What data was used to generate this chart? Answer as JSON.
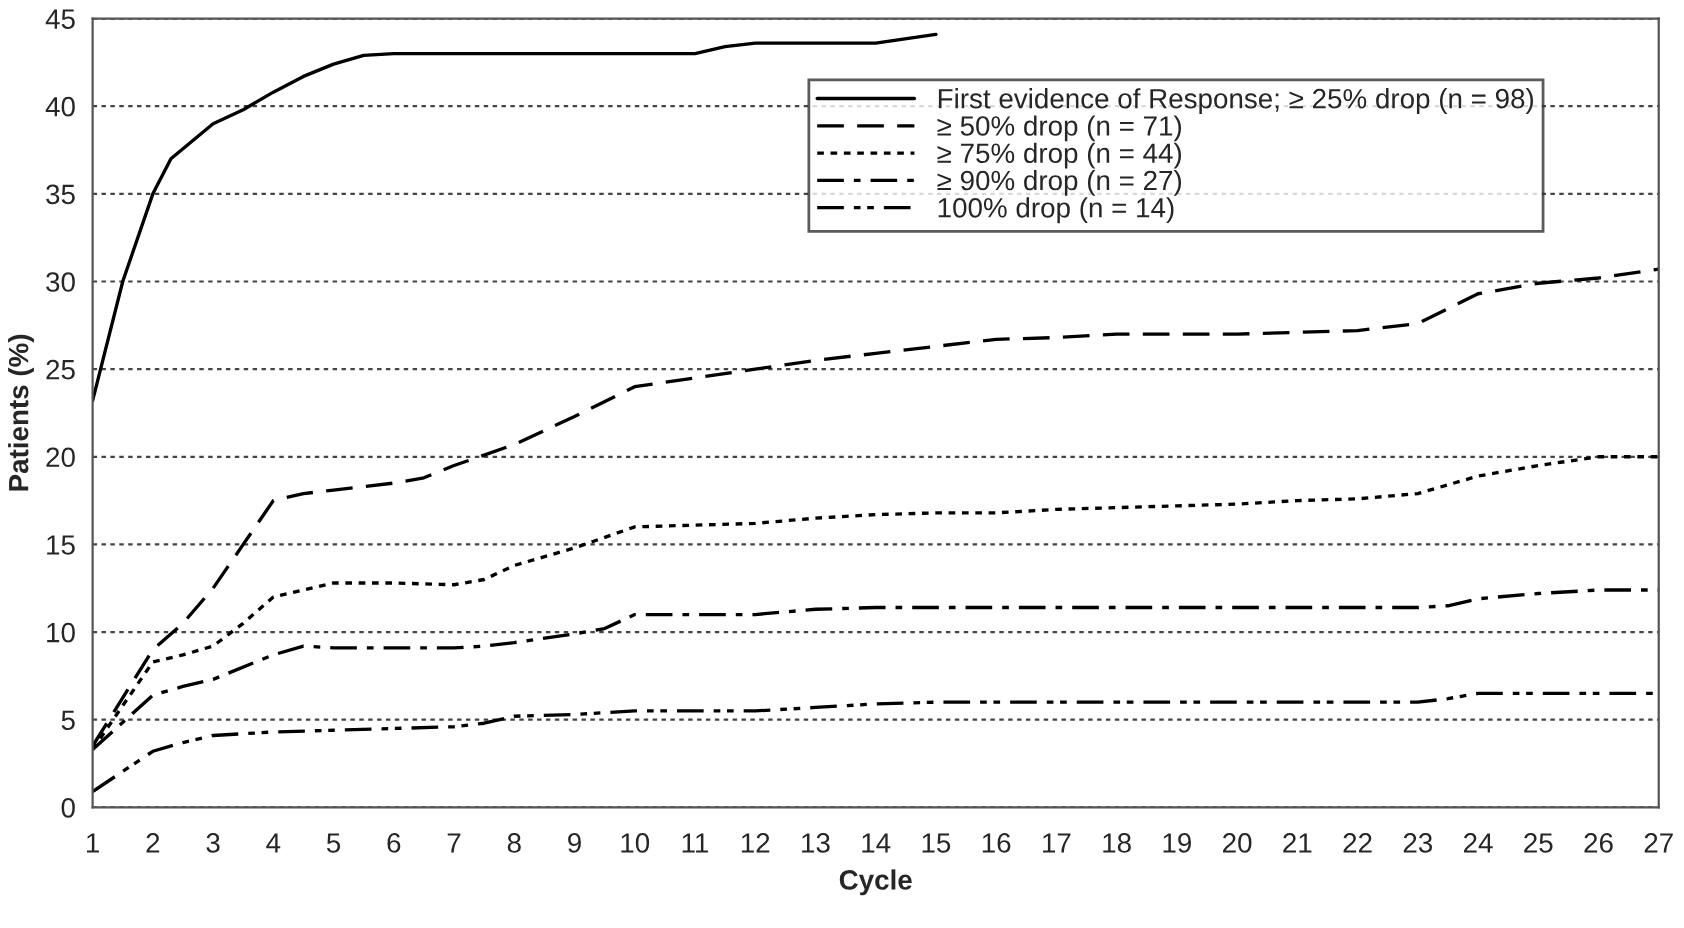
{
  "chart_data": {
    "type": "line",
    "xlabel": "Cycle",
    "ylabel": "Patients (%)",
    "xlim": [
      1,
      27
    ],
    "xticks": [
      1,
      2,
      3,
      4,
      5,
      6,
      7,
      8,
      9,
      10,
      11,
      12,
      13,
      14,
      15,
      16,
      17,
      18,
      19,
      20,
      21,
      22,
      23,
      24,
      25,
      26,
      27
    ],
    "ylim": [
      0,
      45
    ],
    "yticks": [
      0,
      5,
      10,
      15,
      20,
      25,
      30,
      35,
      40,
      45
    ],
    "grid": "y",
    "legend": "top right",
    "marker": "none",
    "series": [
      {
        "name": "First evidence of Response; ≥ 25% drop (n = 98)",
        "color": "#000000",
        "line_style": "solid",
        "x": [
          1,
          1.5,
          2,
          2.3,
          3,
          3.5,
          4,
          4.5,
          5,
          5.5,
          6,
          11,
          11.5,
          12,
          14,
          15
        ],
        "values": [
          23.2,
          30,
          35,
          37,
          39,
          39.8,
          40.8,
          41.7,
          42.4,
          42.9,
          43,
          43,
          43.4,
          43.6,
          43.6,
          44.1
        ]
      },
      {
        "name": "≥ 50% drop (n = 71)",
        "color": "#000000",
        "line_style": "dashed",
        "x": [
          1,
          2,
          2.5,
          3,
          3.5,
          4,
          4.5,
          5,
          6,
          6.5,
          7,
          8,
          9,
          10,
          11,
          12,
          13,
          14,
          15,
          16,
          17,
          18,
          19,
          20,
          21,
          22,
          23,
          24,
          25,
          26,
          27
        ],
        "values": [
          3.5,
          9,
          10.5,
          12.5,
          15,
          17.5,
          17.9,
          18.1,
          18.5,
          18.8,
          19.5,
          20.7,
          22.3,
          24,
          24.5,
          25,
          25.5,
          25.9,
          26.3,
          26.7,
          26.8,
          27,
          27,
          27,
          27.1,
          27.2,
          27.6,
          29.3,
          29.9,
          30.2,
          30.7
        ]
      },
      {
        "name": "≥ 75% drop (n = 44)",
        "color": "#000000",
        "line_style": "dotted",
        "x": [
          1,
          2,
          2.5,
          3,
          3.5,
          4,
          5,
          6,
          7,
          7.5,
          8,
          9,
          10,
          11,
          12,
          13,
          14,
          15,
          16,
          17,
          18,
          19,
          20,
          21,
          22,
          23,
          24,
          25,
          26,
          27
        ],
        "values": [
          3.3,
          8.3,
          8.7,
          9.2,
          10.5,
          12,
          12.8,
          12.8,
          12.7,
          13,
          13.8,
          14.8,
          16,
          16.1,
          16.2,
          16.5,
          16.7,
          16.8,
          16.8,
          17,
          17.1,
          17.2,
          17.3,
          17.5,
          17.6,
          17.9,
          18.9,
          19.5,
          20,
          20
        ]
      },
      {
        "name": "≥ 90% drop (n = 27)",
        "color": "#000000",
        "line_style": "dashdot",
        "x": [
          1,
          2,
          2.5,
          3,
          4,
          4.5,
          5,
          6,
          7,
          7.5,
          8,
          9,
          9.5,
          10,
          11,
          12,
          13,
          14,
          23,
          23.5,
          24,
          25,
          26,
          27
        ],
        "values": [
          3.3,
          6.4,
          6.9,
          7.3,
          8.7,
          9.2,
          9.1,
          9.1,
          9.1,
          9.2,
          9.4,
          9.9,
          10.2,
          11,
          11,
          11,
          11.3,
          11.4,
          11.4,
          11.5,
          11.9,
          12.2,
          12.4,
          12.4
        ]
      },
      {
        "name": "100% drop (n = 14)",
        "color": "#000000",
        "line_style": "dashdotdot",
        "x": [
          1,
          2,
          2.5,
          3,
          4,
          5,
          6,
          7,
          7.5,
          8,
          9,
          10,
          12,
          13,
          14,
          15,
          23,
          23.5,
          24,
          27
        ],
        "values": [
          0.9,
          3.2,
          3.7,
          4.1,
          4.3,
          4.4,
          4.5,
          4.6,
          4.8,
          5.2,
          5.3,
          5.5,
          5.5,
          5.7,
          5.9,
          6,
          6,
          6.2,
          6.5,
          6.5
        ]
      }
    ]
  }
}
